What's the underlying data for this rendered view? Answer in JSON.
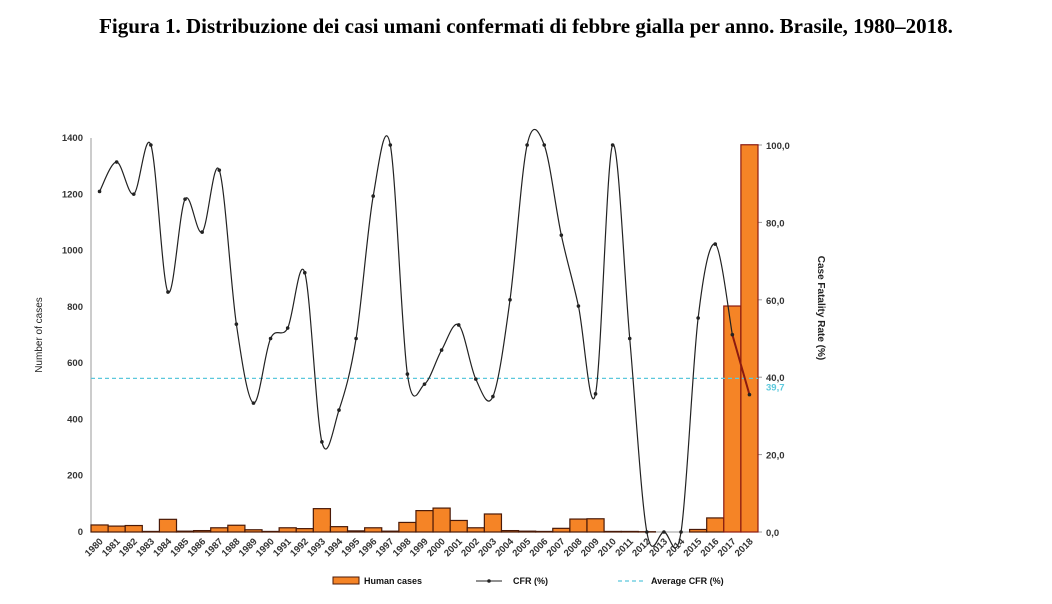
{
  "title": "Figura 1. Distribuzione dei casi umani confermati di febbre gialla per anno. Brasile, 1980–2018.",
  "chart_data": {
    "type": "bar+line",
    "categories": [
      "1980",
      "1981",
      "1982",
      "1983",
      "1984",
      "1985",
      "1986",
      "1987",
      "1988",
      "1989",
      "1990",
      "1991",
      "1992",
      "1993",
      "1994",
      "1995",
      "1996",
      "1997",
      "1998",
      "1999",
      "2000",
      "2001",
      "2002",
      "2003",
      "2004",
      "2005",
      "2006",
      "2007",
      "2008",
      "2009",
      "2010",
      "2011",
      "2012",
      "2013",
      "2014",
      "2015",
      "2016",
      "2017",
      "2018"
    ],
    "series": [
      {
        "name": "Human cases",
        "axis": "left",
        "type": "bar",
        "color": "#f58426",
        "values": [
          25,
          21,
          23,
          2,
          45,
          3,
          5,
          15,
          24,
          8,
          2,
          15,
          12,
          83,
          19,
          4,
          15,
          3,
          34,
          76,
          85,
          41,
          15,
          64,
          5,
          3,
          2,
          13,
          46,
          47,
          2,
          2,
          1,
          0,
          0,
          9,
          50,
          803,
          1376
        ]
      },
      {
        "name": "CFR (%)",
        "axis": "right",
        "type": "line",
        "color": "#222222",
        "values": [
          88,
          95.6,
          87.3,
          100,
          62,
          86,
          77.5,
          93.5,
          53.7,
          33.3,
          50,
          52.7,
          67,
          23.3,
          31.5,
          50,
          86.8,
          100,
          40.8,
          38.2,
          47,
          53.5,
          39.5,
          35,
          60,
          100,
          100,
          76.7,
          58.4,
          35.7,
          100,
          50,
          0,
          0,
          0,
          55.3,
          74.4,
          51,
          35.5
        ]
      },
      {
        "name": "Average CFR (%)",
        "axis": "right",
        "type": "hline",
        "color": "#5bc8dc",
        "value": 39.7
      }
    ],
    "average_label": "39,7",
    "ylabel": "Number of cases",
    "y2label": "Case Fatality Rate (%)",
    "ylim": [
      0,
      1400
    ],
    "y2lim": [
      0,
      100
    ],
    "yticks": [
      "0",
      "200",
      "400",
      "600",
      "800",
      "1000",
      "1200",
      "1400"
    ],
    "y2ticks": [
      "0,0",
      "20,0",
      "40,0",
      "60,0",
      "80,0",
      "100,0"
    ],
    "legend_position": "bottom"
  }
}
